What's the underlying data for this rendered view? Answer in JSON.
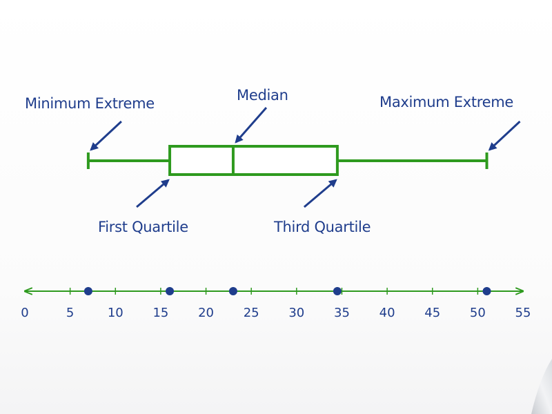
{
  "colors": {
    "plot": "#2e9a1e",
    "annotation": "#1f3d8c",
    "box_fill": "#ffffff"
  },
  "labels": {
    "minimum": "Minimum Extreme",
    "median": "Median",
    "maximum": "Maximum Extreme",
    "first_quartile": "First Quartile",
    "third_quartile": "Third Quartile"
  },
  "chart_data": {
    "type": "box",
    "box": {
      "min": 7,
      "q1": 16,
      "median": 23,
      "q3": 34.5,
      "max": 51
    },
    "number_line": {
      "range": [
        0,
        55
      ],
      "ticks": [
        0,
        5,
        10,
        15,
        20,
        25,
        30,
        35,
        40,
        45,
        50,
        55
      ],
      "points": [
        7,
        16,
        23,
        34.5,
        51
      ]
    }
  }
}
